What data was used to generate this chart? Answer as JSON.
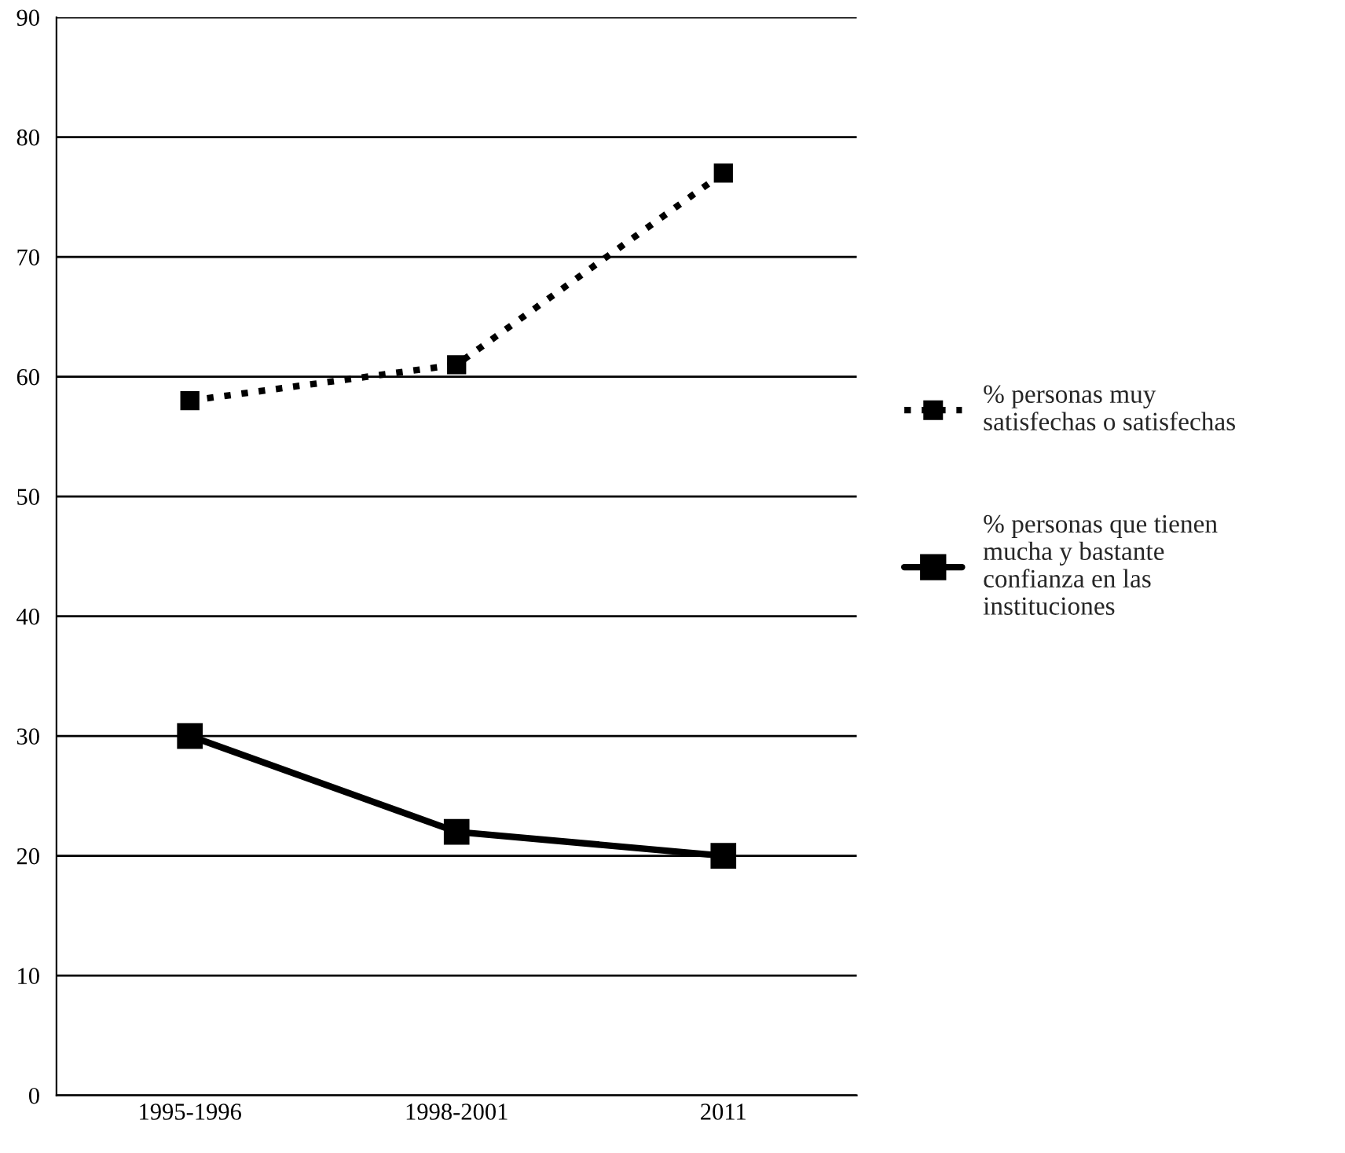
{
  "chart_data": {
    "type": "line",
    "categories": [
      "1995-1996",
      "1998-2001",
      "2011"
    ],
    "series": [
      {
        "name": "% personas muy\nsatisfechas o satisfechas",
        "color": "#000000",
        "values": [
          58,
          61,
          77
        ],
        "line_style": "dotted",
        "marker": "square"
      },
      {
        "name": "% personas que tienen\nmucha y bastante\nconfianza en las\ninstituciones",
        "color": "#000000",
        "values": [
          30,
          22,
          20
        ],
        "line_style": "solid",
        "marker": "square"
      }
    ],
    "ylim": [
      0,
      90
    ],
    "yticks": [
      0,
      10,
      20,
      30,
      40,
      50,
      60,
      70,
      80,
      90
    ],
    "grid": "y",
    "legend": "right"
  }
}
